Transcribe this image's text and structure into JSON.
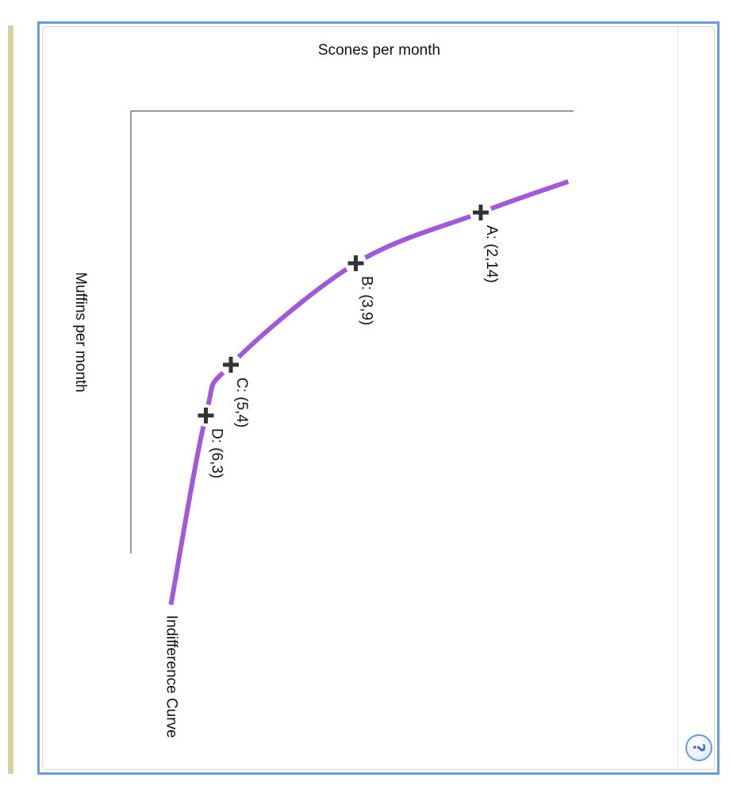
{
  "chart_data": {
    "type": "line",
    "orientation": "rotated-90-clockwise",
    "xlabel": "Scones per month",
    "ylabel": "Muffins per month",
    "xlim": [
      0,
      8
    ],
    "ylim": [
      0,
      18
    ],
    "grid": false,
    "series": [
      {
        "name": "Indifference Curve",
        "color": "#a259d9",
        "points": [
          {
            "x": 1.39,
            "y": 17.5
          },
          {
            "x": 2,
            "y": 14
          },
          {
            "x": 3,
            "y": 9
          },
          {
            "x": 5,
            "y": 4
          },
          {
            "x": 6,
            "y": 3
          },
          {
            "x": 9.73,
            "y": 1.6
          }
        ]
      }
    ],
    "markers": [
      {
        "label": "A: (2,14)",
        "x": 2,
        "y": 14
      },
      {
        "label": "B: (3,9)",
        "x": 3,
        "y": 9
      },
      {
        "label": "C: (5,4)",
        "x": 5,
        "y": 4
      },
      {
        "label": "D: (6,3)",
        "x": 6,
        "y": 3
      }
    ],
    "marker_color": "#333333"
  },
  "help": {
    "glyph": "?"
  }
}
